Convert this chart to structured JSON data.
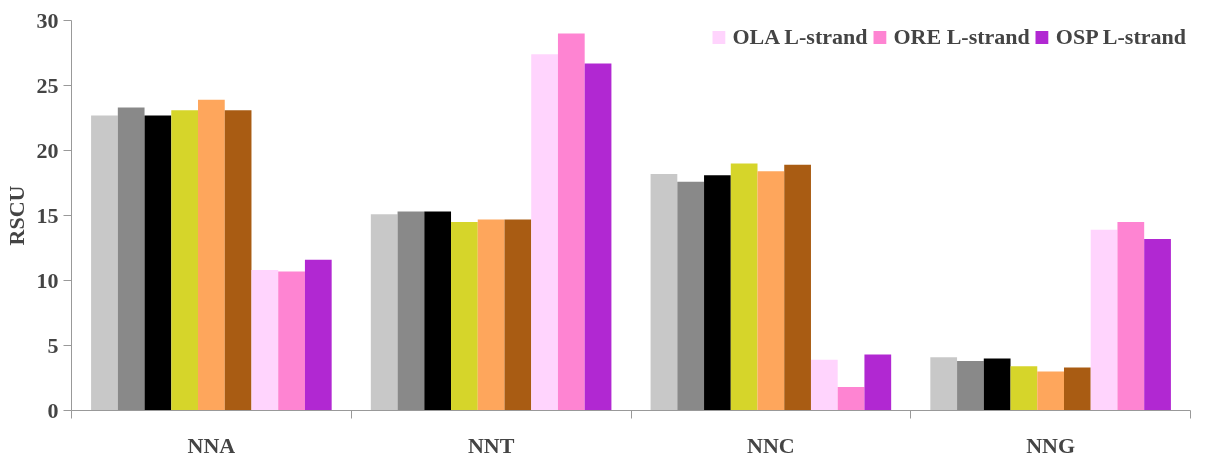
{
  "chart_data": {
    "type": "bar",
    "ylabel": "RSCU",
    "categories": [
      "NNA",
      "NNT",
      "NNC",
      "NNG"
    ],
    "series": [
      {
        "color": "#c8c8c8",
        "values": [
          22.7,
          15.1,
          18.2,
          4.1
        ]
      },
      {
        "color": "#898989",
        "values": [
          23.3,
          15.3,
          17.6,
          3.8
        ]
      },
      {
        "color": "#000000",
        "values": [
          22.7,
          15.3,
          18.1,
          4.0
        ]
      },
      {
        "color": "#d6d52a",
        "values": [
          23.1,
          14.5,
          19.0,
          3.4
        ]
      },
      {
        "color": "#fea65c",
        "values": [
          23.9,
          14.7,
          18.4,
          3.0
        ]
      },
      {
        "color": "#a95c13",
        "values": [
          23.1,
          14.7,
          18.9,
          3.3
        ]
      },
      {
        "name": "OLA L-strand",
        "color": "#ffd4fd",
        "values": [
          10.8,
          27.4,
          3.9,
          13.9
        ]
      },
      {
        "name": "ORE L-strand",
        "color": "#fe84d2",
        "values": [
          10.7,
          29.0,
          1.8,
          14.5
        ]
      },
      {
        "name": "OSP L-strand",
        "color": "#b128d2",
        "values": [
          11.6,
          26.7,
          4.3,
          13.2
        ]
      }
    ],
    "ylim": [
      0,
      30
    ],
    "yticks": [
      0,
      5,
      10,
      15,
      20,
      25,
      30
    ],
    "grid": false,
    "legend": "top right"
  }
}
